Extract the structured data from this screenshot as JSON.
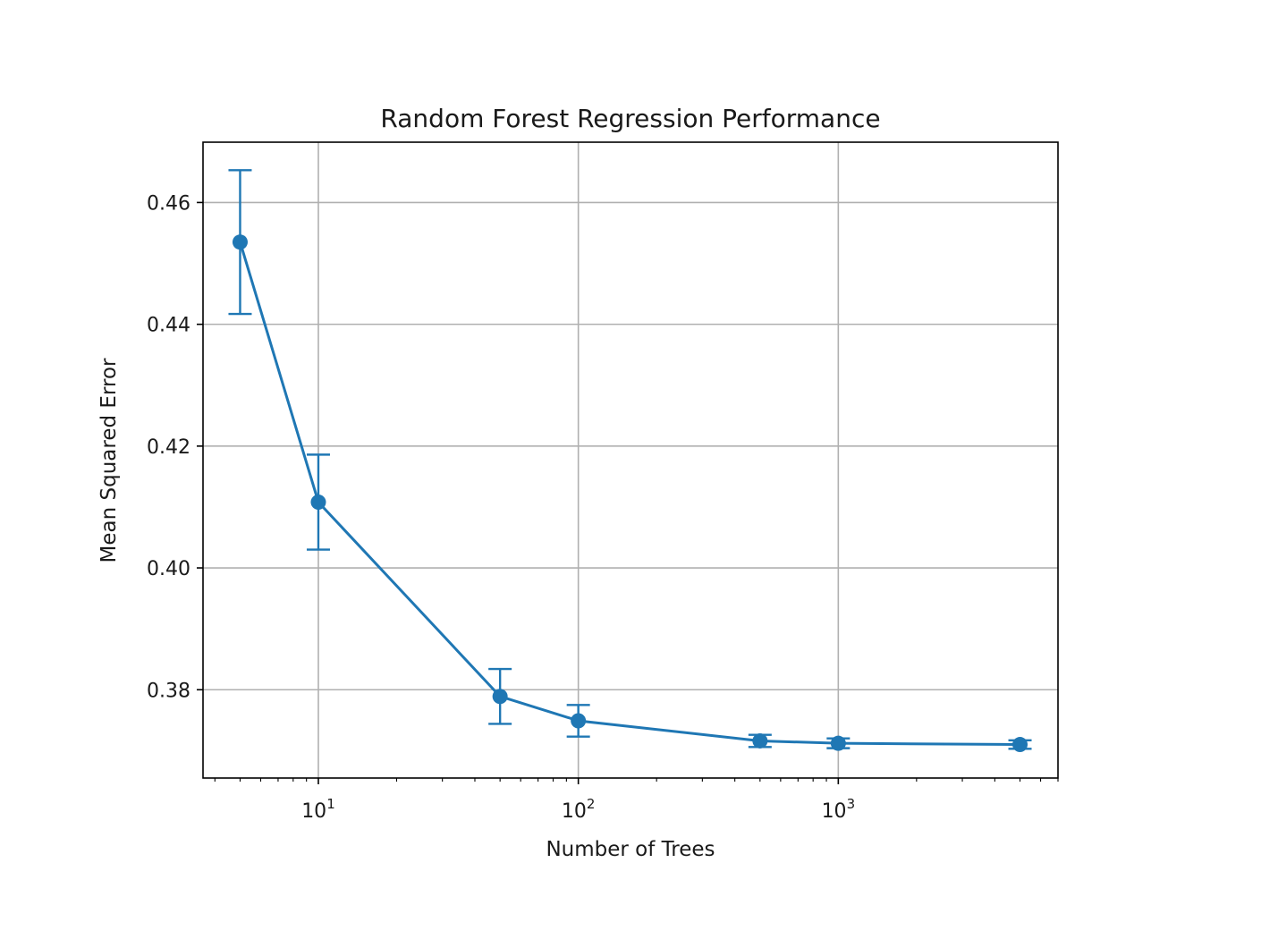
{
  "chart_data": {
    "type": "line",
    "title": "Random Forest Regression Performance",
    "xlabel": "Number of Trees",
    "ylabel": "Mean Squared Error",
    "x_scale": "log",
    "xlim": [
      3.6,
      7000
    ],
    "ylim": [
      0.3655,
      0.4699
    ],
    "x_ticks": [
      10,
      100,
      1000
    ],
    "x_tick_labels": [
      {
        "base": "10",
        "exp": "1"
      },
      {
        "base": "10",
        "exp": "2"
      },
      {
        "base": "10",
        "exp": "3"
      }
    ],
    "y_ticks": [
      0.38,
      0.4,
      0.42,
      0.44,
      0.46
    ],
    "y_tick_labels": [
      "0.38",
      "0.40",
      "0.42",
      "0.44",
      "0.46"
    ],
    "grid": true,
    "series": [
      {
        "color": "#1f77b4",
        "marker": "circle",
        "x": [
          5,
          10,
          50,
          100,
          500,
          1000,
          5000
        ],
        "y": [
          0.4535,
          0.4108,
          0.3789,
          0.3749,
          0.3716,
          0.3712,
          0.371
        ],
        "yerr": [
          0.0118,
          0.0078,
          0.0045,
          0.0026,
          0.001,
          0.0008,
          0.0007
        ]
      }
    ]
  }
}
